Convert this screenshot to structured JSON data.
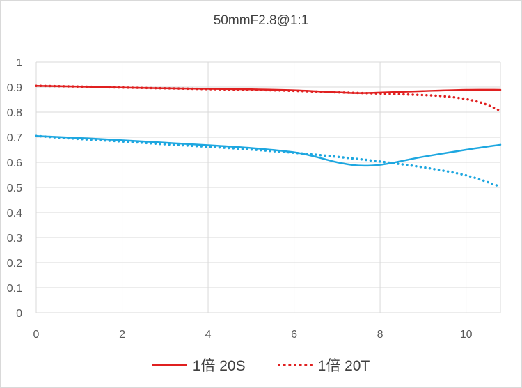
{
  "chart_data": {
    "type": "line",
    "title": "50mmF2.8@1:1",
    "xlabel": "",
    "ylabel": "",
    "xlim": [
      0,
      10.8
    ],
    "ylim": [
      0,
      1
    ],
    "x_ticks": [
      0,
      2,
      4,
      6,
      8,
      10
    ],
    "y_ticks": [
      0,
      0.1,
      0.2,
      0.3,
      0.4,
      0.5,
      0.6,
      0.7,
      0.8,
      0.9,
      1
    ],
    "x_tick_labels": [
      "0",
      "2",
      "4",
      "6",
      "8",
      "10"
    ],
    "y_tick_labels": [
      "0",
      "0.1",
      "0.2",
      "0.3",
      "0.4",
      "0.5",
      "0.6",
      "0.7",
      "0.8",
      "0.9",
      "1"
    ],
    "grid": true,
    "legend_position": "bottom",
    "series": [
      {
        "name": "1倍 20S",
        "group": "red-solid",
        "color": "#e02020",
        "style": "solid",
        "x": [
          0,
          1,
          2,
          3,
          4,
          5,
          6,
          7,
          7.5,
          8,
          9,
          10,
          10.8
        ],
        "y": [
          0.905,
          0.902,
          0.898,
          0.895,
          0.893,
          0.891,
          0.887,
          0.879,
          0.876,
          0.878,
          0.884,
          0.889,
          0.889
        ]
      },
      {
        "name": "1倍 20T",
        "group": "red-dotted",
        "color": "#e02020",
        "style": "dotted",
        "x": [
          0,
          1,
          2,
          3,
          4,
          5,
          6,
          7,
          8,
          9,
          9.5,
          10,
          10.4,
          10.8
        ],
        "y": [
          0.905,
          0.902,
          0.898,
          0.895,
          0.892,
          0.889,
          0.885,
          0.879,
          0.874,
          0.868,
          0.863,
          0.852,
          0.835,
          0.805
        ]
      },
      {
        "name": "1倍 20S",
        "group": "blue-solid",
        "color": "#1ea7e0",
        "style": "solid",
        "x": [
          0,
          1,
          2,
          3,
          4,
          5,
          6,
          6.5,
          7,
          7.5,
          8,
          8.5,
          9,
          10,
          10.8
        ],
        "y": [
          0.705,
          0.697,
          0.688,
          0.678,
          0.668,
          0.657,
          0.64,
          0.622,
          0.6,
          0.587,
          0.59,
          0.605,
          0.622,
          0.65,
          0.67
        ]
      },
      {
        "name": "1倍 20T",
        "group": "blue-dotted",
        "color": "#1ea7e0",
        "style": "dotted",
        "x": [
          0,
          1,
          2,
          3,
          4,
          5,
          6,
          7,
          8,
          9,
          10,
          10.8
        ],
        "y": [
          0.705,
          0.693,
          0.683,
          0.672,
          0.662,
          0.651,
          0.638,
          0.622,
          0.603,
          0.58,
          0.548,
          0.503
        ]
      }
    ],
    "legend": [
      {
        "label": "1倍 20S",
        "style": "solid",
        "color": "#e02020"
      },
      {
        "label": "1倍 20T",
        "style": "dotted",
        "color": "#e02020"
      }
    ]
  }
}
